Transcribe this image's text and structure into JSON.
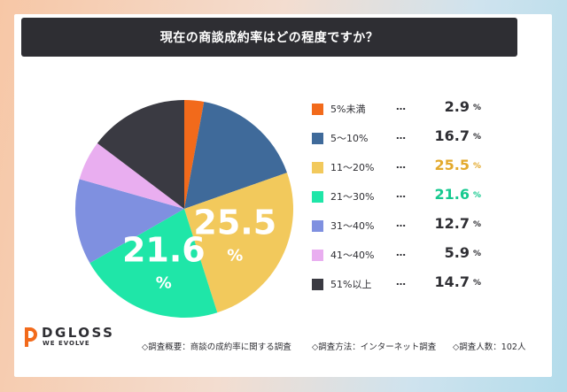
{
  "title": "現在の商談成約率はどの程度ですか？",
  "chart_data": {
    "type": "pie",
    "categories": [
      "5%未満",
      "5～10%",
      "11～20%",
      "21～30%",
      "31～40%",
      "41～40%",
      "51%以上"
    ],
    "values": [
      2.9,
      16.7,
      25.5,
      21.6,
      12.7,
      5.9,
      14.7
    ],
    "unit": "%",
    "colors": [
      "#f26a1b",
      "#3f6a9a",
      "#f2c95c",
      "#1fe6a8",
      "#7f90e0",
      "#e9aef0",
      "#3a3a42"
    ],
    "value_text_colors": [
      "#2e2e33",
      "#2e2e33",
      "#e3a92c",
      "#16c98f",
      "#2e2e33",
      "#2e2e33",
      "#2e2e33"
    ],
    "pie_labels": [
      {
        "value": "25.5",
        "unit": "%"
      },
      {
        "value": "21.6",
        "unit": "%"
      }
    ],
    "legend_separator": "…",
    "legend_placement": "right"
  },
  "brand": {
    "name": "DGLOSS",
    "tagline": "WE EVOLVE",
    "accent": "#f26a1b"
  },
  "footer": {
    "items": [
      "◇調査概要：商談の成約率に関する調査",
      "◇調査方法：インターネット調査",
      "◇調査人数：102人"
    ]
  }
}
